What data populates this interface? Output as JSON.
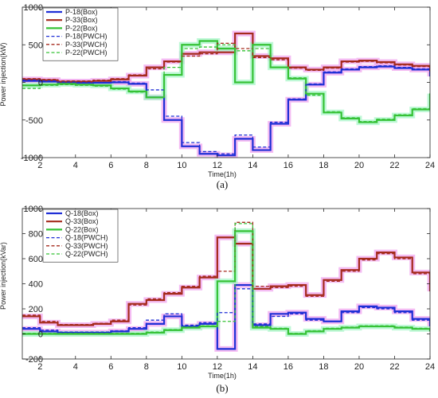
{
  "chart_data": [
    {
      "type": "line",
      "panel_label": "(a)",
      "xlabel": "Time(1h)",
      "ylabel": "Power injection(kW)",
      "xlim": [
        1,
        24
      ],
      "ylim": [
        -1000,
        1000
      ],
      "xticks": [
        2,
        4,
        6,
        8,
        10,
        12,
        14,
        16,
        18,
        20,
        22,
        24
      ],
      "yticks": [
        -1000,
        -500,
        0,
        500,
        1000
      ],
      "legend_position": "top-left",
      "x": [
        1,
        2,
        3,
        4,
        5,
        6,
        7,
        8,
        9,
        10,
        11,
        12,
        13,
        14,
        15,
        16,
        17,
        18,
        19,
        20,
        21,
        22,
        23,
        24
      ],
      "series": [
        {
          "name": "P-18(Box)",
          "color": "#1f2fd6",
          "dash": false,
          "halo": "#f0a6ef",
          "values": [
            20,
            10,
            0,
            -5,
            -5,
            0,
            -20,
            -200,
            -500,
            -850,
            -950,
            -970,
            -750,
            -900,
            -550,
            -230,
            -30,
            130,
            170,
            200,
            210,
            190,
            170,
            80
          ]
        },
        {
          "name": "P-33(Box)",
          "color": "#a52a1c",
          "dash": false,
          "halo": "#f0a6ef",
          "values": [
            40,
            30,
            10,
            10,
            20,
            40,
            90,
            200,
            280,
            380,
            400,
            400,
            650,
            350,
            320,
            200,
            170,
            200,
            280,
            290,
            270,
            240,
            220,
            150
          ]
        },
        {
          "name": "P-22(Box)",
          "color": "#36c236",
          "dash": false,
          "halo": "#a8f5c8",
          "values": [
            -40,
            -30,
            -20,
            -30,
            -40,
            -80,
            -120,
            -200,
            100,
            500,
            550,
            450,
            0,
            500,
            200,
            50,
            -150,
            -400,
            -480,
            -530,
            -500,
            -440,
            -360,
            -150
          ]
        },
        {
          "name": "P-18(PWCH)",
          "color": "#1f2fd6",
          "dash": true,
          "values": [
            30,
            20,
            5,
            0,
            0,
            10,
            -10,
            -100,
            -450,
            -800,
            -920,
            -950,
            -700,
            -860,
            -530,
            -220,
            -20,
            140,
            180,
            210,
            220,
            200,
            180,
            90
          ]
        },
        {
          "name": "P-33(PWCH)",
          "color": "#a52a1c",
          "dash": true,
          "values": [
            50,
            40,
            20,
            20,
            30,
            50,
            100,
            180,
            270,
            350,
            380,
            520,
            450,
            330,
            300,
            190,
            160,
            190,
            270,
            280,
            260,
            230,
            210,
            140
          ]
        },
        {
          "name": "P-22(PWCH)",
          "color": "#36c236",
          "dash": true,
          "values": [
            -80,
            -40,
            -30,
            -40,
            -50,
            -90,
            -130,
            -200,
            200,
            450,
            470,
            500,
            420,
            450,
            200,
            60,
            -170,
            -390,
            -470,
            -520,
            -490,
            -430,
            -350,
            -140
          ]
        }
      ]
    },
    {
      "type": "line",
      "panel_label": "(b)",
      "xlabel": "Time(1h)",
      "ylabel": "Power injection(kVar)",
      "xlim": [
        1,
        24
      ],
      "ylim": [
        -200,
        1000
      ],
      "xticks": [
        2,
        4,
        6,
        8,
        10,
        12,
        14,
        16,
        18,
        20,
        22,
        24
      ],
      "yticks": [
        -200,
        0,
        200,
        400,
        600,
        800,
        1000
      ],
      "legend_position": "top-left",
      "x": [
        1,
        2,
        3,
        4,
        5,
        6,
        7,
        8,
        9,
        10,
        11,
        12,
        13,
        14,
        15,
        16,
        17,
        18,
        19,
        20,
        21,
        22,
        23,
        24
      ],
      "series": [
        {
          "name": "Q-18(Box)",
          "color": "#1f2fd6",
          "dash": false,
          "halo": "#f0a6ef",
          "values": [
            40,
            20,
            10,
            10,
            10,
            20,
            40,
            80,
            140,
            60,
            80,
            -120,
            390,
            70,
            160,
            170,
            120,
            100,
            180,
            220,
            210,
            180,
            120,
            60
          ]
        },
        {
          "name": "Q-33(Box)",
          "color": "#a52a1c",
          "dash": false,
          "halo": "#f0a6ef",
          "values": [
            140,
            90,
            70,
            70,
            80,
            100,
            240,
            270,
            320,
            370,
            450,
            770,
            720,
            360,
            380,
            390,
            310,
            430,
            510,
            600,
            650,
            610,
            490,
            340
          ]
        },
        {
          "name": "Q-22(Box)",
          "color": "#36c236",
          "dash": false,
          "halo": "#a8f5c8",
          "values": [
            0,
            0,
            0,
            0,
            0,
            0,
            0,
            10,
            30,
            50,
            60,
            420,
            820,
            50,
            40,
            0,
            20,
            40,
            50,
            60,
            60,
            50,
            40,
            20
          ]
        },
        {
          "name": "Q-18(PWCH)",
          "color": "#1f2fd6",
          "dash": true,
          "values": [
            50,
            30,
            15,
            15,
            15,
            25,
            50,
            110,
            160,
            70,
            90,
            170,
            360,
            80,
            140,
            160,
            110,
            100,
            170,
            210,
            200,
            170,
            110,
            55
          ]
        },
        {
          "name": "Q-33(PWCH)",
          "color": "#a52a1c",
          "dash": true,
          "values": [
            150,
            100,
            75,
            75,
            85,
            110,
            230,
            280,
            330,
            380,
            460,
            500,
            890,
            380,
            370,
            380,
            300,
            420,
            500,
            590,
            640,
            600,
            480,
            330
          ]
        },
        {
          "name": "Q-22(PWCH)",
          "color": "#36c236",
          "dash": true,
          "values": [
            5,
            5,
            5,
            5,
            5,
            5,
            5,
            15,
            35,
            55,
            65,
            100,
            880,
            60,
            45,
            5,
            25,
            45,
            55,
            65,
            65,
            55,
            45,
            25
          ]
        }
      ]
    }
  ]
}
